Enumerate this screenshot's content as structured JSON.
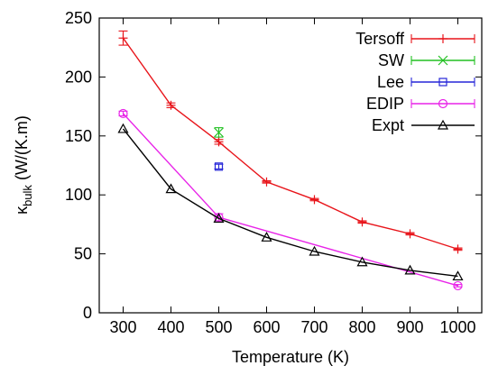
{
  "chart_data": {
    "type": "line",
    "xlabel": "Temperature (K)",
    "ylabel": {
      "main": "κ",
      "sub": "bulk",
      "rest": " (W/(K.m)"
    },
    "xlim": [
      250,
      1050
    ],
    "ylim": [
      0,
      250
    ],
    "xticks": [
      "300",
      "400",
      "500",
      "600",
      "700",
      "800",
      "900",
      "1000"
    ],
    "yticks": [
      "0",
      "50",
      "100",
      "150",
      "200",
      "250"
    ],
    "legend_position": "top-right",
    "series": [
      {
        "name": "Tersoff",
        "color": "#e8141a",
        "marker": "plus",
        "x": [
          300,
          400,
          500,
          600,
          700,
          800,
          900,
          1000
        ],
        "y": [
          233,
          176,
          145,
          111,
          96,
          77,
          67,
          54
        ],
        "err": [
          6,
          2,
          2,
          1,
          1,
          1,
          1,
          1
        ]
      },
      {
        "name": "SW",
        "color": "#22c122",
        "marker": "cross",
        "x": [
          500
        ],
        "y": [
          153
        ],
        "err": [
          4
        ]
      },
      {
        "name": "Lee",
        "color": "#2727d8",
        "marker": "square",
        "x": [
          500
        ],
        "y": [
          124
        ],
        "err": [
          2
        ]
      },
      {
        "name": "EDIP",
        "color": "#e824e8",
        "marker": "circle",
        "x": [
          300,
          500,
          1000
        ],
        "y": [
          169,
          81,
          23
        ],
        "err": [
          2,
          3,
          1
        ]
      },
      {
        "name": "Expt",
        "color": "#000000",
        "marker": "triangle",
        "x": [
          300,
          400,
          500,
          600,
          700,
          800,
          900,
          1000
        ],
        "y": [
          156,
          105,
          80,
          64,
          52,
          43,
          36,
          31
        ],
        "err": [
          0,
          0,
          0,
          0,
          0,
          0,
          0,
          0
        ]
      }
    ]
  }
}
